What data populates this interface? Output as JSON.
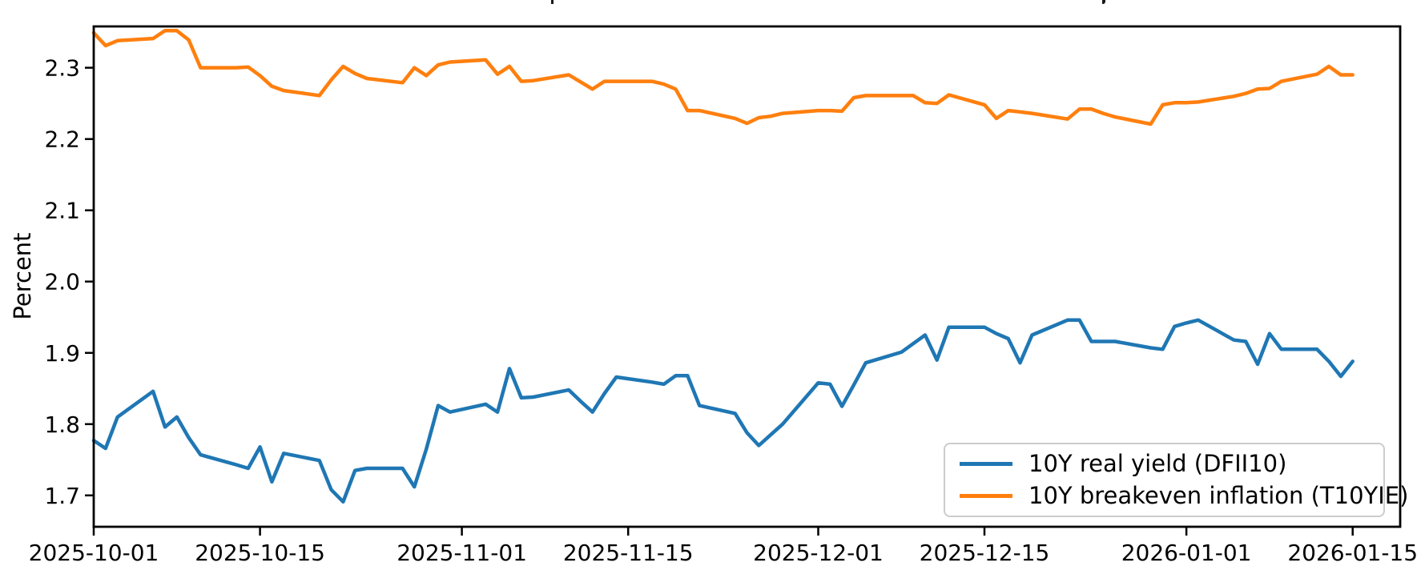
{
  "figure": {
    "background": "#ffffff",
    "spine_color": "#000000",
    "text_color": "#000000"
  },
  "chart_data": {
    "type": "line",
    "ylabel": "Percent",
    "grid": false,
    "xlim": [
      "2025-10-01",
      "2026-01-19"
    ],
    "ylim": [
      1.656,
      2.358
    ],
    "legend": {
      "position": "lower right",
      "entries": [
        "10Y real yield (DFII10)",
        "10Y breakeven inflation (T10YIE)"
      ]
    },
    "x_ticks": [
      {
        "date": "2025-10-01",
        "label": "2025-10-01"
      },
      {
        "date": "2025-10-15",
        "label": "2025-10-15"
      },
      {
        "date": "2025-11-01",
        "label": "2025-11-01"
      },
      {
        "date": "2025-11-15",
        "label": "2025-11-15"
      },
      {
        "date": "2025-12-01",
        "label": "2025-12-01"
      },
      {
        "date": "2025-12-15",
        "label": "2025-12-15"
      },
      {
        "date": "2026-01-01",
        "label": "2026-01-01"
      },
      {
        "date": "2026-01-15",
        "label": "2026-01-15"
      }
    ],
    "y_ticks": [
      {
        "value": 2.3,
        "label": "2.3"
      },
      {
        "value": 2.2,
        "label": "2.2"
      },
      {
        "value": 2.1,
        "label": "2.1"
      },
      {
        "value": 2.0,
        "label": "2.0"
      },
      {
        "value": 1.9,
        "label": "1.9"
      },
      {
        "value": 1.8,
        "label": "1.8"
      },
      {
        "value": 1.7,
        "label": "1.7"
      }
    ],
    "x_dates": [
      "2025-10-01",
      "2025-10-02",
      "2025-10-03",
      "2025-10-06",
      "2025-10-07",
      "2025-10-08",
      "2025-10-09",
      "2025-10-10",
      "2025-10-13",
      "2025-10-14",
      "2025-10-15",
      "2025-10-16",
      "2025-10-17",
      "2025-10-20",
      "2025-10-21",
      "2025-10-22",
      "2025-10-23",
      "2025-10-24",
      "2025-10-27",
      "2025-10-28",
      "2025-10-29",
      "2025-10-30",
      "2025-10-31",
      "2025-11-03",
      "2025-11-04",
      "2025-11-05",
      "2025-11-06",
      "2025-11-07",
      "2025-11-10",
      "2025-11-11",
      "2025-11-12",
      "2025-11-13",
      "2025-11-14",
      "2025-11-17",
      "2025-11-18",
      "2025-11-19",
      "2025-11-20",
      "2025-11-21",
      "2025-11-24",
      "2025-11-25",
      "2025-11-26",
      "2025-11-27",
      "2025-11-28",
      "2025-12-01",
      "2025-12-02",
      "2025-12-03",
      "2025-12-04",
      "2025-12-05",
      "2025-12-08",
      "2025-12-09",
      "2025-12-10",
      "2025-12-11",
      "2025-12-12",
      "2025-12-15",
      "2025-12-16",
      "2025-12-17",
      "2025-12-18",
      "2025-12-19",
      "2025-12-22",
      "2025-12-23",
      "2025-12-24",
      "2025-12-25",
      "2025-12-26",
      "2025-12-29",
      "2025-12-30",
      "2025-12-31",
      "2026-01-01",
      "2026-01-02",
      "2026-01-05",
      "2026-01-06",
      "2026-01-07",
      "2026-01-08",
      "2026-01-09",
      "2026-01-12",
      "2026-01-13",
      "2026-01-14",
      "2026-01-15"
    ],
    "series": [
      {
        "name": "10Y real yield (DFII10)",
        "color": "#1f77b4",
        "values": [
          1.777,
          1.766,
          1.81,
          1.846,
          1.796,
          1.81,
          1.781,
          1.757,
          1.743,
          1.738,
          1.768,
          1.719,
          1.759,
          1.749,
          1.708,
          1.691,
          1.735,
          1.738,
          1.738,
          1.712,
          1.765,
          1.826,
          1.817,
          1.828,
          1.817,
          1.878,
          1.837,
          1.838,
          1.848,
          1.832,
          1.817,
          1.843,
          1.866,
          1.859,
          1.856,
          1.868,
          1.868,
          1.826,
          1.815,
          1.788,
          1.77,
          1.785,
          1.8,
          1.858,
          1.856,
          1.825,
          1.855,
          1.886,
          1.901,
          1.913,
          1.925,
          1.89,
          1.936,
          1.936,
          1.927,
          1.92,
          1.886,
          1.925,
          1.946,
          1.946,
          1.916,
          1.916,
          1.916,
          1.907,
          1.905,
          1.937,
          1.942,
          1.946,
          1.918,
          1.916,
          1.884,
          1.927,
          1.905,
          1.905,
          1.888,
          1.867,
          1.888
        ]
      },
      {
        "name": "10Y breakeven inflation (T10YIE)",
        "color": "#ff7f0e",
        "values": [
          2.349,
          2.331,
          2.338,
          2.341,
          2.352,
          2.352,
          2.339,
          2.3,
          2.3,
          2.301,
          2.289,
          2.274,
          2.268,
          2.261,
          2.283,
          2.302,
          2.292,
          2.285,
          2.279,
          2.3,
          2.289,
          2.304,
          2.308,
          2.311,
          2.291,
          2.302,
          2.281,
          2.282,
          2.29,
          2.28,
          2.27,
          2.281,
          2.281,
          2.281,
          2.277,
          2.27,
          2.24,
          2.24,
          2.229,
          2.222,
          2.23,
          2.232,
          2.236,
          2.24,
          2.24,
          2.239,
          2.258,
          2.261,
          2.261,
          2.261,
          2.251,
          2.25,
          2.262,
          2.248,
          2.229,
          2.24,
          2.238,
          2.236,
          2.228,
          2.242,
          2.242,
          2.236,
          2.231,
          2.221,
          2.248,
          2.251,
          2.251,
          2.252,
          2.26,
          2.264,
          2.27,
          2.271,
          2.281,
          2.291,
          2.302,
          2.29,
          2.29
        ]
      }
    ]
  }
}
